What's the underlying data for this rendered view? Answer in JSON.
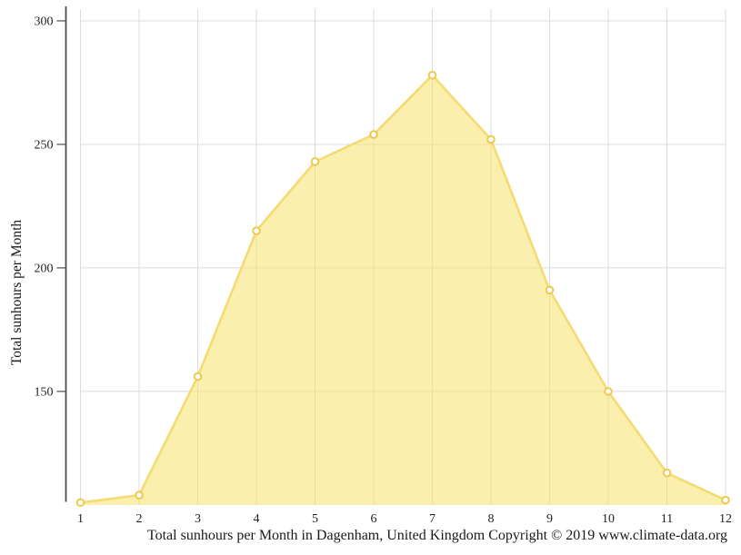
{
  "chart_data": {
    "type": "area",
    "title": "Total sunhours per Month in Dagenham, United Kingdom",
    "caption": "Total sunhours per Month in Dagenham, United Kingdom Copyright © 2019 www.climate-data.org",
    "xlabel": "",
    "ylabel": "Total sunhours per Month",
    "x": [
      1,
      2,
      3,
      4,
      5,
      6,
      7,
      8,
      9,
      10,
      11,
      12
    ],
    "xtick_labels": [
      "1",
      "2",
      "3",
      "4",
      "5",
      "6",
      "7",
      "8",
      "9",
      "10",
      "11",
      "12"
    ],
    "values": [
      105,
      108,
      156,
      215,
      243,
      254,
      278,
      252,
      191,
      150,
      117,
      106
    ],
    "series_name": "Total sunhours per Month",
    "yticks": [
      150,
      200,
      250,
      300
    ],
    "ylim": [
      104,
      305.5
    ],
    "grid": "on",
    "legend": "none",
    "colors": {
      "area_fill": "#F5E169",
      "area_fill_opacity": 0.55,
      "line": "#F3D96F",
      "marker_fill": "#FFFFFF",
      "marker_stroke": "#EFC94F",
      "grid": "#DCDCDC",
      "axis": "#4D4D4D",
      "text": "#1F1F1F"
    }
  }
}
